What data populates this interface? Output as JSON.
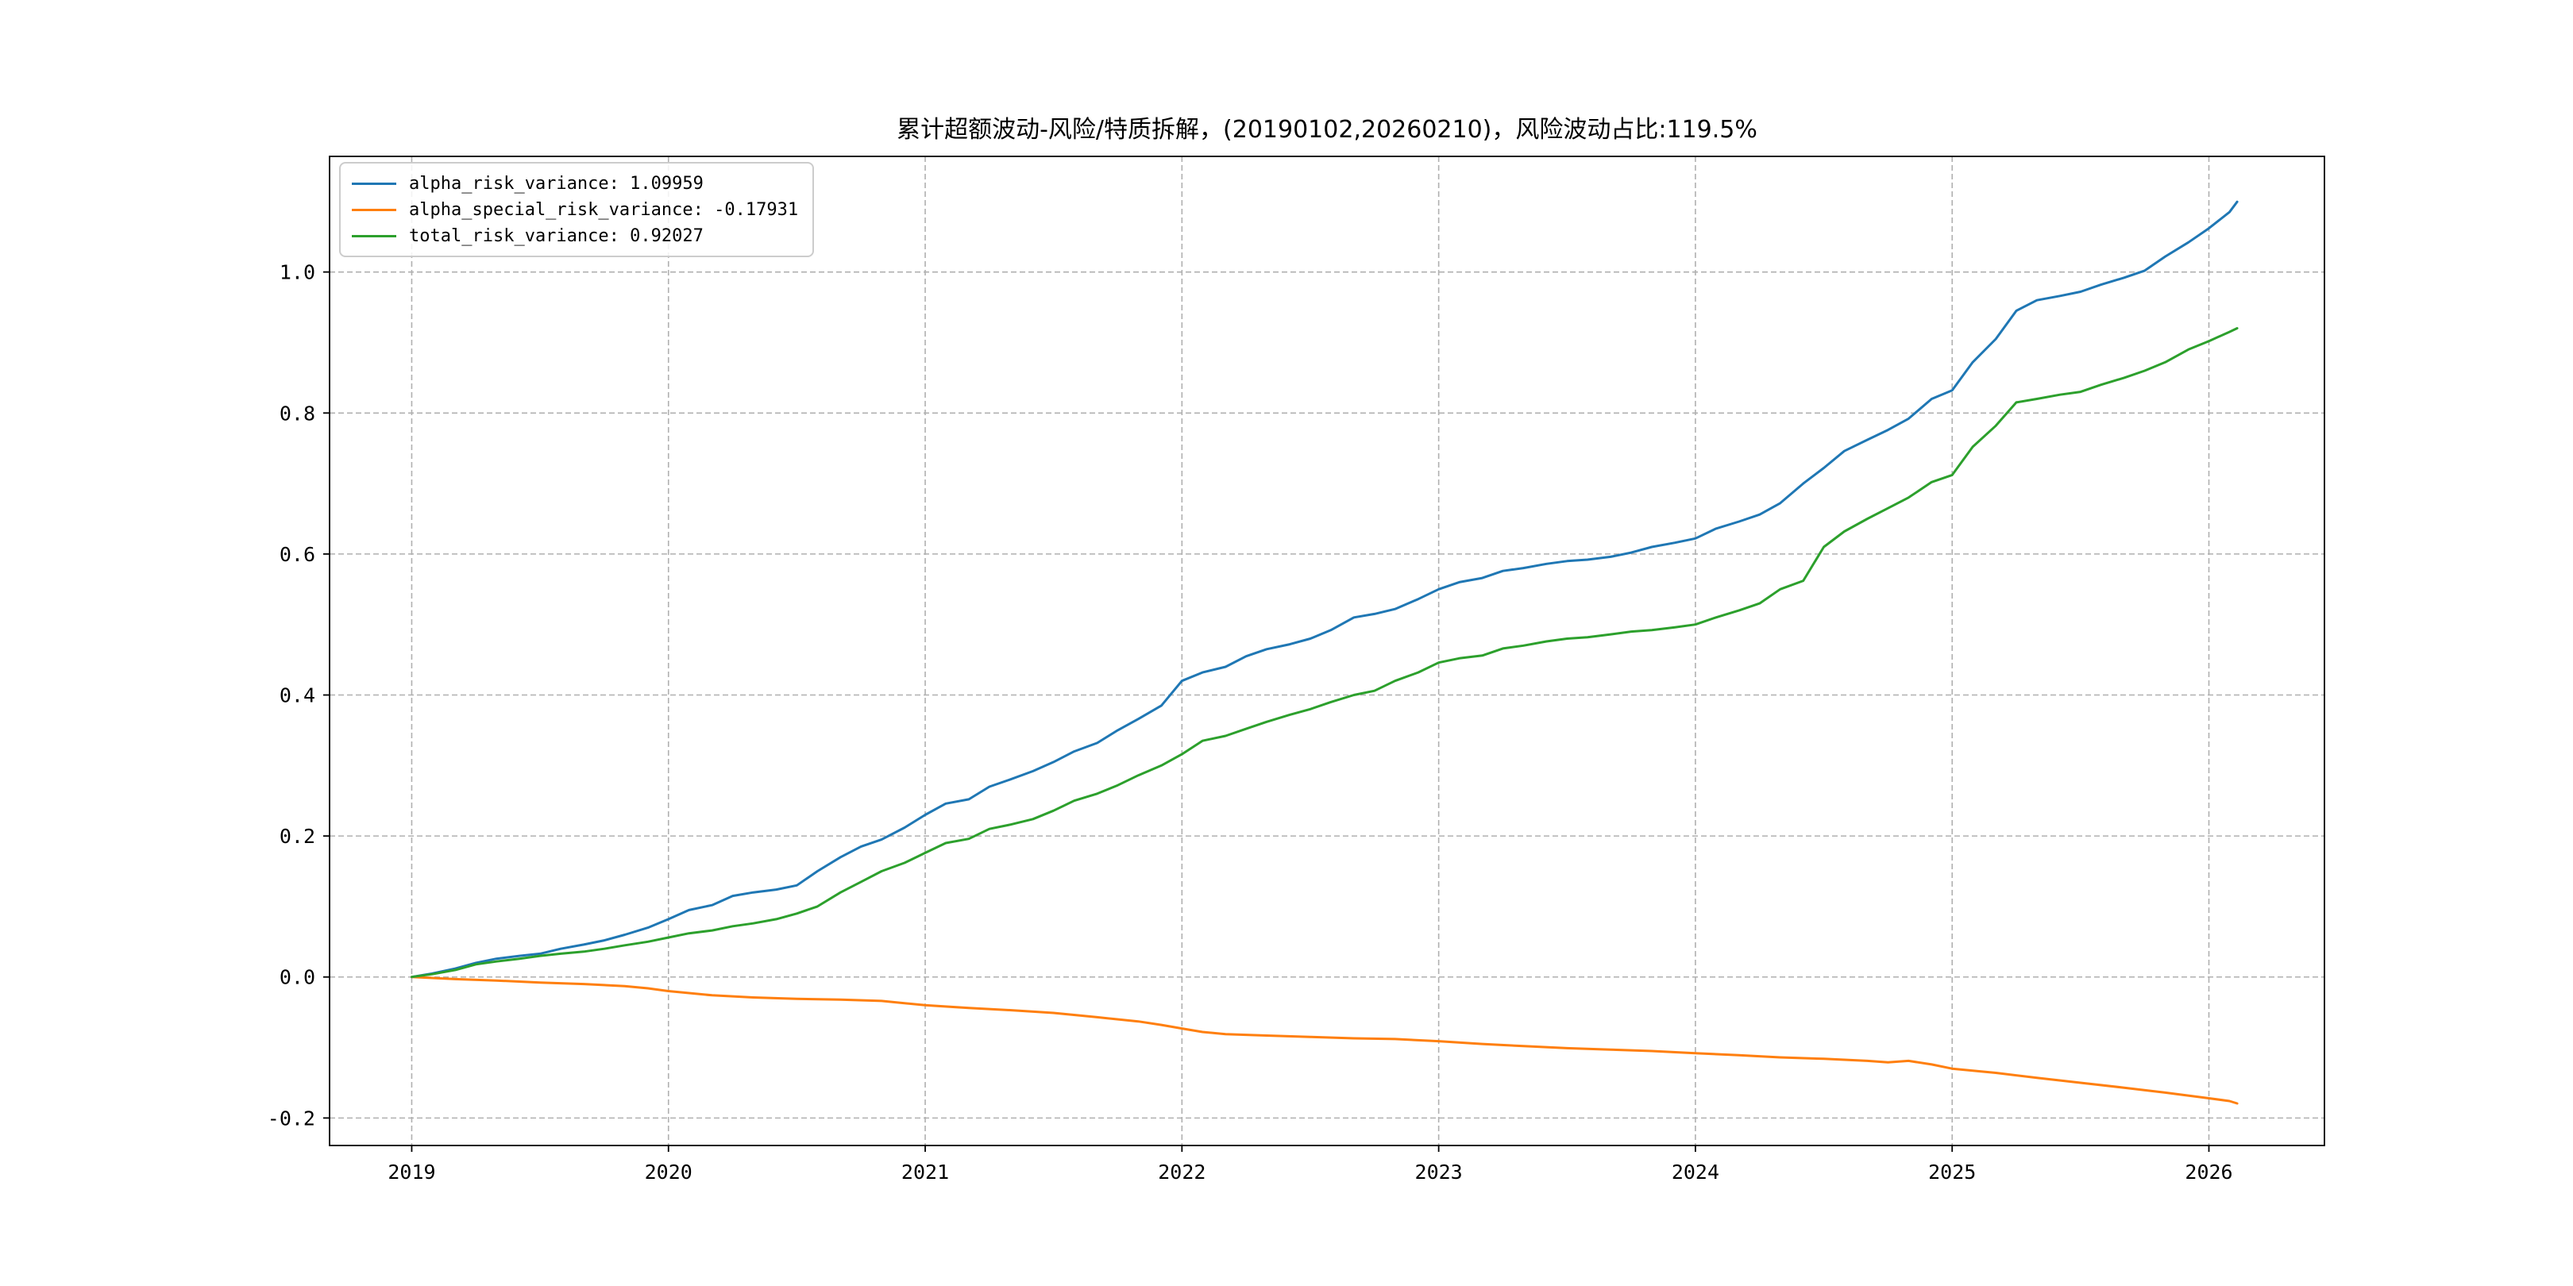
{
  "page": {
    "background": "#ffffff"
  },
  "chart_data": {
    "type": "line",
    "title": "累计超额波动-风险/特质拆解，(20190102,20260210)，风险波动占比:119.5%",
    "xlabel": "",
    "ylabel": "",
    "xlim": [
      2018.68,
      2026.45
    ],
    "ylim": [
      -0.239,
      1.164
    ],
    "x_ticks": [
      2019,
      2020,
      2021,
      2022,
      2023,
      2024,
      2025,
      2026
    ],
    "x_tick_labels": [
      "2019",
      "2020",
      "2021",
      "2022",
      "2023",
      "2024",
      "2025",
      "2026"
    ],
    "y_ticks": [
      -0.2,
      0.0,
      0.2,
      0.4,
      0.6,
      0.8,
      1.0
    ],
    "y_tick_labels": [
      "-0.2",
      "0.0",
      "0.2",
      "0.4",
      "0.6",
      "0.8",
      "1.0"
    ],
    "grid": true,
    "grid_style": "dashed",
    "grid_color": "#b0b0b0",
    "spine_color": "#000000",
    "legend_position": "upper left",
    "series": [
      {
        "name": "alpha_risk_variance",
        "final_value": 1.09959,
        "color": "#1f77b4",
        "points": [
          [
            2019.0,
            0.0
          ],
          [
            2019.08,
            0.005
          ],
          [
            2019.17,
            0.012
          ],
          [
            2019.25,
            0.02
          ],
          [
            2019.33,
            0.026
          ],
          [
            2019.42,
            0.03
          ],
          [
            2019.5,
            0.033
          ],
          [
            2019.58,
            0.04
          ],
          [
            2019.67,
            0.046
          ],
          [
            2019.75,
            0.052
          ],
          [
            2019.83,
            0.06
          ],
          [
            2019.92,
            0.07
          ],
          [
            2020.0,
            0.082
          ],
          [
            2020.08,
            0.095
          ],
          [
            2020.17,
            0.102
          ],
          [
            2020.25,
            0.115
          ],
          [
            2020.33,
            0.12
          ],
          [
            2020.42,
            0.124
          ],
          [
            2020.5,
            0.13
          ],
          [
            2020.58,
            0.15
          ],
          [
            2020.67,
            0.17
          ],
          [
            2020.75,
            0.185
          ],
          [
            2020.83,
            0.195
          ],
          [
            2020.92,
            0.212
          ],
          [
            2021.0,
            0.23
          ],
          [
            2021.08,
            0.246
          ],
          [
            2021.17,
            0.252
          ],
          [
            2021.25,
            0.27
          ],
          [
            2021.33,
            0.28
          ],
          [
            2021.42,
            0.292
          ],
          [
            2021.5,
            0.305
          ],
          [
            2021.58,
            0.32
          ],
          [
            2021.67,
            0.332
          ],
          [
            2021.75,
            0.35
          ],
          [
            2021.83,
            0.366
          ],
          [
            2021.92,
            0.385
          ],
          [
            2022.0,
            0.42
          ],
          [
            2022.08,
            0.432
          ],
          [
            2022.17,
            0.44
          ],
          [
            2022.25,
            0.455
          ],
          [
            2022.33,
            0.465
          ],
          [
            2022.42,
            0.472
          ],
          [
            2022.5,
            0.48
          ],
          [
            2022.58,
            0.492
          ],
          [
            2022.67,
            0.51
          ],
          [
            2022.75,
            0.515
          ],
          [
            2022.83,
            0.522
          ],
          [
            2022.92,
            0.536
          ],
          [
            2023.0,
            0.55
          ],
          [
            2023.08,
            0.56
          ],
          [
            2023.17,
            0.566
          ],
          [
            2023.25,
            0.576
          ],
          [
            2023.33,
            0.58
          ],
          [
            2023.42,
            0.586
          ],
          [
            2023.5,
            0.59
          ],
          [
            2023.58,
            0.592
          ],
          [
            2023.67,
            0.596
          ],
          [
            2023.75,
            0.602
          ],
          [
            2023.83,
            0.61
          ],
          [
            2023.92,
            0.616
          ],
          [
            2024.0,
            0.622
          ],
          [
            2024.08,
            0.636
          ],
          [
            2024.17,
            0.646
          ],
          [
            2024.25,
            0.656
          ],
          [
            2024.33,
            0.672
          ],
          [
            2024.42,
            0.7
          ],
          [
            2024.5,
            0.722
          ],
          [
            2024.58,
            0.746
          ],
          [
            2024.67,
            0.762
          ],
          [
            2024.75,
            0.776
          ],
          [
            2024.83,
            0.792
          ],
          [
            2024.92,
            0.82
          ],
          [
            2025.0,
            0.832
          ],
          [
            2025.08,
            0.872
          ],
          [
            2025.17,
            0.905
          ],
          [
            2025.25,
            0.945
          ],
          [
            2025.33,
            0.96
          ],
          [
            2025.42,
            0.966
          ],
          [
            2025.5,
            0.972
          ],
          [
            2025.58,
            0.982
          ],
          [
            2025.67,
            0.992
          ],
          [
            2025.75,
            1.002
          ],
          [
            2025.83,
            1.022
          ],
          [
            2025.92,
            1.042
          ],
          [
            2026.0,
            1.062
          ],
          [
            2026.08,
            1.085
          ],
          [
            2026.11,
            1.09959
          ]
        ]
      },
      {
        "name": "alpha_special_risk_variance",
        "final_value": -0.17931,
        "color": "#ff7f0e",
        "points": [
          [
            2019.0,
            0.0
          ],
          [
            2019.17,
            -0.003
          ],
          [
            2019.33,
            -0.005
          ],
          [
            2019.5,
            -0.008
          ],
          [
            2019.67,
            -0.01
          ],
          [
            2019.83,
            -0.013
          ],
          [
            2019.92,
            -0.016
          ],
          [
            2020.0,
            -0.02
          ],
          [
            2020.17,
            -0.026
          ],
          [
            2020.33,
            -0.029
          ],
          [
            2020.5,
            -0.031
          ],
          [
            2020.67,
            -0.032
          ],
          [
            2020.83,
            -0.034
          ],
          [
            2021.0,
            -0.04
          ],
          [
            2021.17,
            -0.044
          ],
          [
            2021.33,
            -0.047
          ],
          [
            2021.5,
            -0.051
          ],
          [
            2021.67,
            -0.057
          ],
          [
            2021.83,
            -0.063
          ],
          [
            2021.92,
            -0.068
          ],
          [
            2022.0,
            -0.073
          ],
          [
            2022.08,
            -0.078
          ],
          [
            2022.17,
            -0.081
          ],
          [
            2022.33,
            -0.083
          ],
          [
            2022.5,
            -0.085
          ],
          [
            2022.67,
            -0.087
          ],
          [
            2022.83,
            -0.088
          ],
          [
            2023.0,
            -0.091
          ],
          [
            2023.17,
            -0.095
          ],
          [
            2023.33,
            -0.098
          ],
          [
            2023.5,
            -0.101
          ],
          [
            2023.67,
            -0.103
          ],
          [
            2023.83,
            -0.105
          ],
          [
            2024.0,
            -0.108
          ],
          [
            2024.17,
            -0.111
          ],
          [
            2024.33,
            -0.114
          ],
          [
            2024.5,
            -0.116
          ],
          [
            2024.67,
            -0.119
          ],
          [
            2024.75,
            -0.121
          ],
          [
            2024.83,
            -0.119
          ],
          [
            2024.92,
            -0.124
          ],
          [
            2025.0,
            -0.13
          ],
          [
            2025.17,
            -0.136
          ],
          [
            2025.33,
            -0.143
          ],
          [
            2025.5,
            -0.15
          ],
          [
            2025.67,
            -0.157
          ],
          [
            2025.83,
            -0.164
          ],
          [
            2026.0,
            -0.172
          ],
          [
            2026.08,
            -0.176
          ],
          [
            2026.11,
            -0.17931
          ]
        ]
      },
      {
        "name": "total_risk_variance",
        "final_value": 0.92027,
        "color": "#2ca02c",
        "points": [
          [
            2019.0,
            0.0
          ],
          [
            2019.08,
            0.004
          ],
          [
            2019.17,
            0.01
          ],
          [
            2019.25,
            0.018
          ],
          [
            2019.33,
            0.022
          ],
          [
            2019.42,
            0.026
          ],
          [
            2019.5,
            0.03
          ],
          [
            2019.58,
            0.033
          ],
          [
            2019.67,
            0.036
          ],
          [
            2019.75,
            0.04
          ],
          [
            2019.83,
            0.045
          ],
          [
            2019.92,
            0.05
          ],
          [
            2020.0,
            0.056
          ],
          [
            2020.08,
            0.062
          ],
          [
            2020.17,
            0.066
          ],
          [
            2020.25,
            0.072
          ],
          [
            2020.33,
            0.076
          ],
          [
            2020.42,
            0.082
          ],
          [
            2020.5,
            0.09
          ],
          [
            2020.58,
            0.1
          ],
          [
            2020.67,
            0.12
          ],
          [
            2020.75,
            0.135
          ],
          [
            2020.83,
            0.15
          ],
          [
            2020.92,
            0.162
          ],
          [
            2021.0,
            0.176
          ],
          [
            2021.08,
            0.19
          ],
          [
            2021.17,
            0.196
          ],
          [
            2021.25,
            0.21
          ],
          [
            2021.33,
            0.216
          ],
          [
            2021.42,
            0.224
          ],
          [
            2021.5,
            0.236
          ],
          [
            2021.58,
            0.25
          ],
          [
            2021.67,
            0.26
          ],
          [
            2021.75,
            0.272
          ],
          [
            2021.83,
            0.286
          ],
          [
            2021.92,
            0.3
          ],
          [
            2022.0,
            0.316
          ],
          [
            2022.08,
            0.335
          ],
          [
            2022.17,
            0.342
          ],
          [
            2022.25,
            0.352
          ],
          [
            2022.33,
            0.362
          ],
          [
            2022.42,
            0.372
          ],
          [
            2022.5,
            0.38
          ],
          [
            2022.58,
            0.39
          ],
          [
            2022.67,
            0.4
          ],
          [
            2022.75,
            0.406
          ],
          [
            2022.83,
            0.42
          ],
          [
            2022.92,
            0.432
          ],
          [
            2023.0,
            0.446
          ],
          [
            2023.08,
            0.452
          ],
          [
            2023.17,
            0.456
          ],
          [
            2023.25,
            0.466
          ],
          [
            2023.33,
            0.47
          ],
          [
            2023.42,
            0.476
          ],
          [
            2023.5,
            0.48
          ],
          [
            2023.58,
            0.482
          ],
          [
            2023.67,
            0.486
          ],
          [
            2023.75,
            0.49
          ],
          [
            2023.83,
            0.492
          ],
          [
            2023.92,
            0.496
          ],
          [
            2024.0,
            0.5
          ],
          [
            2024.08,
            0.51
          ],
          [
            2024.17,
            0.52
          ],
          [
            2024.25,
            0.53
          ],
          [
            2024.33,
            0.55
          ],
          [
            2024.42,
            0.562
          ],
          [
            2024.5,
            0.61
          ],
          [
            2024.58,
            0.632
          ],
          [
            2024.67,
            0.65
          ],
          [
            2024.75,
            0.665
          ],
          [
            2024.83,
            0.68
          ],
          [
            2024.92,
            0.702
          ],
          [
            2025.0,
            0.712
          ],
          [
            2025.08,
            0.752
          ],
          [
            2025.17,
            0.782
          ],
          [
            2025.25,
            0.815
          ],
          [
            2025.33,
            0.82
          ],
          [
            2025.42,
            0.826
          ],
          [
            2025.5,
            0.83
          ],
          [
            2025.58,
            0.84
          ],
          [
            2025.67,
            0.85
          ],
          [
            2025.75,
            0.86
          ],
          [
            2025.83,
            0.872
          ],
          [
            2025.92,
            0.89
          ],
          [
            2026.0,
            0.902
          ],
          [
            2026.08,
            0.915
          ],
          [
            2026.11,
            0.92027
          ]
        ]
      }
    ]
  },
  "legend": {
    "items": [
      {
        "label": "alpha_risk_variance: 1.09959"
      },
      {
        "label": "alpha_special_risk_variance: -0.17931"
      },
      {
        "label": "total_risk_variance: 0.92027"
      }
    ]
  }
}
